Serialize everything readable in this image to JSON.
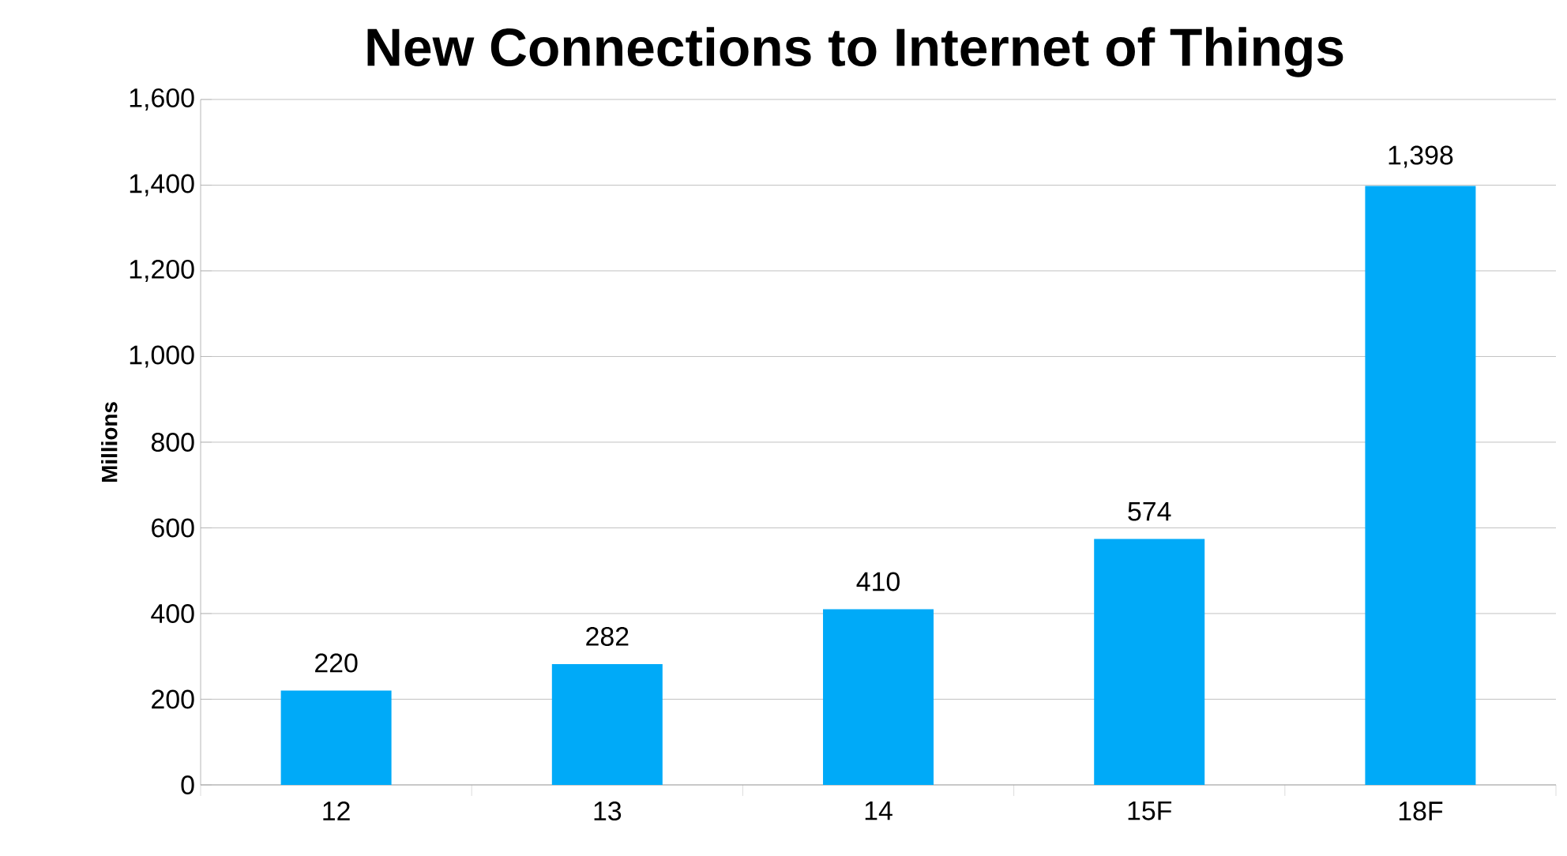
{
  "chart_data": {
    "type": "bar",
    "title": "New Connections to Internet of Things",
    "ylabel": "Millions",
    "categories": [
      "12",
      "13",
      "14",
      "15F",
      "18F"
    ],
    "values": [
      220,
      282,
      410,
      574,
      1398
    ],
    "value_labels": [
      "220",
      "282",
      "410",
      "574",
      "1,398"
    ],
    "color": "#00aaf8",
    "ylim": [
      0,
      1600
    ],
    "yticks": [
      0,
      200,
      400,
      600,
      800,
      {
        "value": 1000,
        "label": "1,000"
      },
      {
        "value": 1200,
        "label": "1,200"
      },
      {
        "value": 1400,
        "label": "1,400"
      },
      {
        "value": 1600,
        "label": "1,600"
      }
    ],
    "grid": "y"
  }
}
